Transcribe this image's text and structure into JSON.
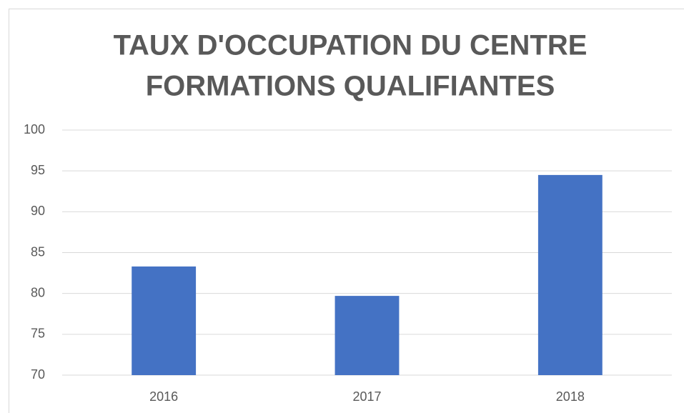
{
  "chart_data": {
    "type": "bar",
    "title": [
      "TAUX D'OCCUPATION DU CENTRE",
      "FORMATIONS QUALIFIANTES"
    ],
    "categories": [
      "2016",
      "2017",
      "2018"
    ],
    "values": [
      83.3,
      79.7,
      94.5
    ],
    "color": "#4472c4",
    "ylim": [
      70,
      100
    ],
    "yticks": [
      70,
      75,
      80,
      85,
      90,
      95,
      100
    ],
    "grid": true
  }
}
